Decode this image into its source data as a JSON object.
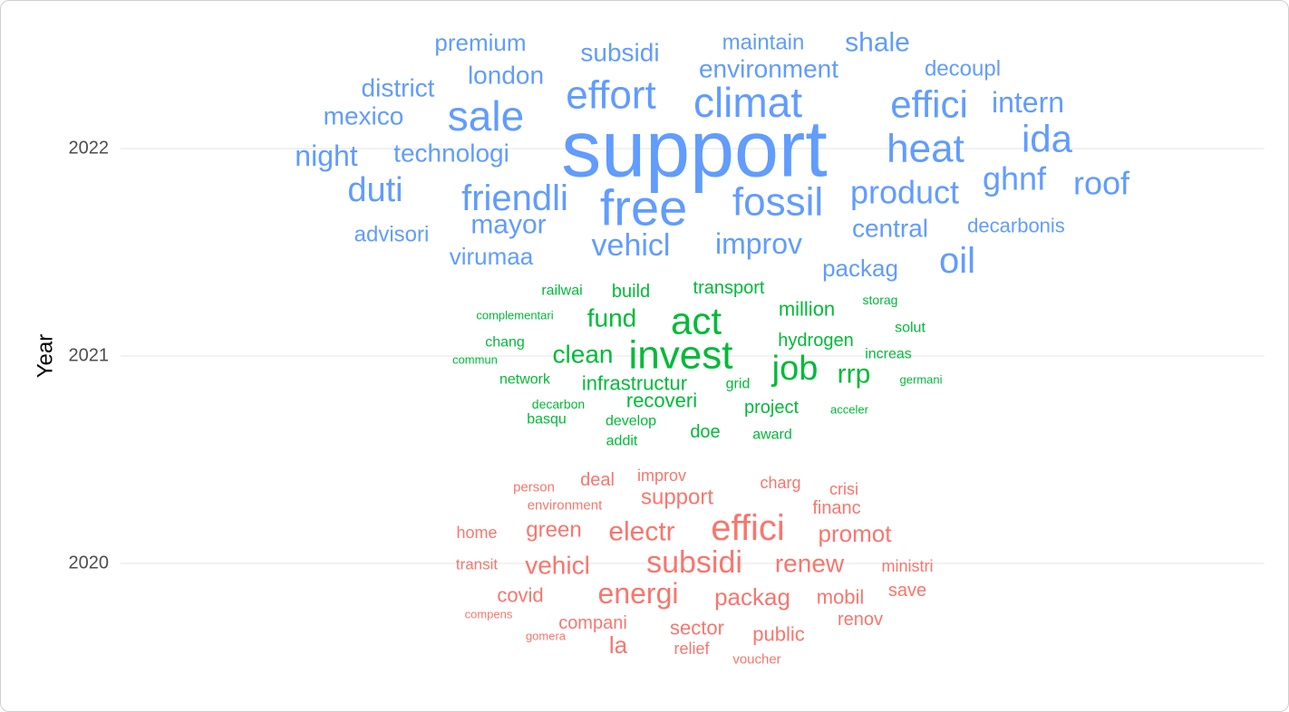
{
  "chart_data": {
    "type": "wordcloud",
    "ylabel": "Year",
    "yticks": [
      "2022",
      "2021",
      "2020"
    ],
    "grid": true,
    "colors": {
      "2022": "#619CFF",
      "2021": "#00BA38",
      "2020": "#F8766D"
    },
    "groups": [
      {
        "year": "2022",
        "words": [
          {
            "text": "support",
            "size": 88
          },
          {
            "text": "sale",
            "size": 46
          },
          {
            "text": "effort",
            "size": 44
          },
          {
            "text": "climat",
            "size": 46
          },
          {
            "text": "free",
            "size": 56
          },
          {
            "text": "fossil",
            "size": 44
          },
          {
            "text": "heat",
            "size": 44
          },
          {
            "text": "ida",
            "size": 42
          },
          {
            "text": "effici",
            "size": 42
          },
          {
            "text": "friendli",
            "size": 40
          },
          {
            "text": "product",
            "size": 36
          },
          {
            "text": "duti",
            "size": 38
          },
          {
            "text": "oil",
            "size": 40
          },
          {
            "text": "roof",
            "size": 36
          },
          {
            "text": "ghnf",
            "size": 36
          },
          {
            "text": "vehicl",
            "size": 34
          },
          {
            "text": "improv",
            "size": 32
          },
          {
            "text": "intern",
            "size": 32
          },
          {
            "text": "night",
            "size": 32
          },
          {
            "text": "mayor",
            "size": 30
          },
          {
            "text": "technologi",
            "size": 28
          },
          {
            "text": "environment",
            "size": 28
          },
          {
            "text": "london",
            "size": 28
          },
          {
            "text": "mexico",
            "size": 28
          },
          {
            "text": "district",
            "size": 28
          },
          {
            "text": "shale",
            "size": 30
          },
          {
            "text": "subsidi",
            "size": 28
          },
          {
            "text": "central",
            "size": 28
          },
          {
            "text": "premium",
            "size": 26
          },
          {
            "text": "virumaa",
            "size": 26
          },
          {
            "text": "packag",
            "size": 26
          },
          {
            "text": "advisori",
            "size": 24
          },
          {
            "text": "maintain",
            "size": 24
          },
          {
            "text": "decoupl",
            "size": 24
          },
          {
            "text": "decarbonis",
            "size": 22
          }
        ]
      },
      {
        "year": "2021",
        "words": [
          {
            "text": "invest",
            "size": 44
          },
          {
            "text": "act",
            "size": 42
          },
          {
            "text": "job",
            "size": 38
          },
          {
            "text": "rrp",
            "size": 30
          },
          {
            "text": "clean",
            "size": 28
          },
          {
            "text": "fund",
            "size": 28
          },
          {
            "text": "infrastructur",
            "size": 22
          },
          {
            "text": "recoveri",
            "size": 22
          },
          {
            "text": "million",
            "size": 22
          },
          {
            "text": "project",
            "size": 20
          },
          {
            "text": "hydrogen",
            "size": 20
          },
          {
            "text": "build",
            "size": 20
          },
          {
            "text": "transport",
            "size": 20
          },
          {
            "text": "doe",
            "size": 20
          },
          {
            "text": "chang",
            "size": 16
          },
          {
            "text": "network",
            "size": 16
          },
          {
            "text": "railwai",
            "size": 16
          },
          {
            "text": "develop",
            "size": 16
          },
          {
            "text": "basqu",
            "size": 16
          },
          {
            "text": "solut",
            "size": 16
          },
          {
            "text": "increas",
            "size": 16
          },
          {
            "text": "addit",
            "size": 16
          },
          {
            "text": "award",
            "size": 16
          },
          {
            "text": "grid",
            "size": 16
          },
          {
            "text": "decarbon",
            "size": 14
          },
          {
            "text": "storag",
            "size": 14
          },
          {
            "text": "germani",
            "size": 13
          },
          {
            "text": "acceler",
            "size": 13
          },
          {
            "text": "complementari",
            "size": 13
          },
          {
            "text": "commun",
            "size": 13
          }
        ]
      },
      {
        "year": "2020",
        "words": [
          {
            "text": "effici",
            "size": 40
          },
          {
            "text": "subsidi",
            "size": 34
          },
          {
            "text": "energi",
            "size": 32
          },
          {
            "text": "electr",
            "size": 30
          },
          {
            "text": "vehicl",
            "size": 28
          },
          {
            "text": "promot",
            "size": 26
          },
          {
            "text": "renew",
            "size": 28
          },
          {
            "text": "packag",
            "size": 26
          },
          {
            "text": "green",
            "size": 24
          },
          {
            "text": "support",
            "size": 24
          },
          {
            "text": "la",
            "size": 26
          },
          {
            "text": "covid",
            "size": 22
          },
          {
            "text": "mobil",
            "size": 22
          },
          {
            "text": "sector",
            "size": 22
          },
          {
            "text": "public",
            "size": 22
          },
          {
            "text": "financ",
            "size": 20
          },
          {
            "text": "save",
            "size": 20
          },
          {
            "text": "renov",
            "size": 20
          },
          {
            "text": "compani",
            "size": 20
          },
          {
            "text": "deal",
            "size": 20
          },
          {
            "text": "charg",
            "size": 18
          },
          {
            "text": "crisi",
            "size": 18
          },
          {
            "text": "improv",
            "size": 18
          },
          {
            "text": "ministri",
            "size": 18
          },
          {
            "text": "relief",
            "size": 18
          },
          {
            "text": "home",
            "size": 18
          },
          {
            "text": "transit",
            "size": 17
          },
          {
            "text": "person",
            "size": 15
          },
          {
            "text": "environment",
            "size": 15
          },
          {
            "text": "voucher",
            "size": 15
          },
          {
            "text": "compens",
            "size": 13
          },
          {
            "text": "gomera",
            "size": 13
          }
        ]
      }
    ]
  }
}
